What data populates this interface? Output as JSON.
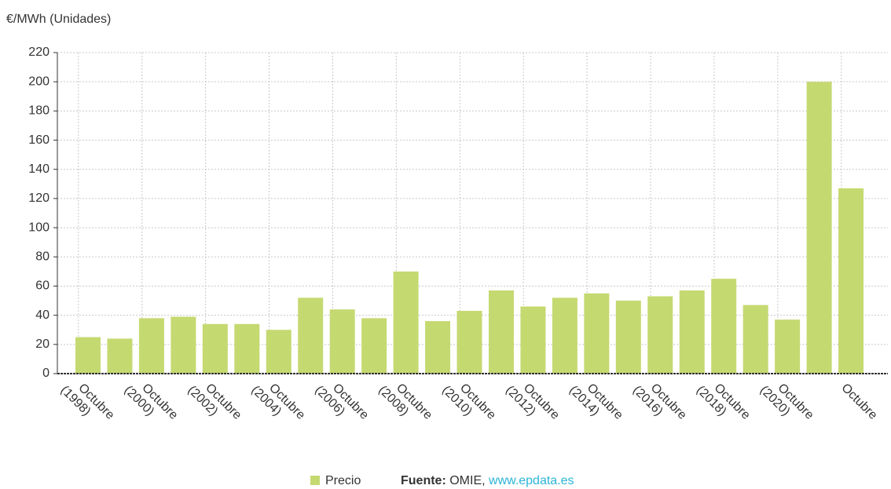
{
  "chart_data": {
    "type": "bar",
    "y_axis_label": "€/MWh (Unidades)",
    "categories": [
      "Octubre (1998)",
      null,
      "Octubre (2000)",
      null,
      "Octubre (2002)",
      null,
      "Octubre (2004)",
      null,
      "Octubre (2006)",
      null,
      "Octubre (2008)",
      null,
      "Octubre (2010)",
      null,
      "Octubre (2012)",
      null,
      "Octubre (2014)",
      null,
      "Octubre (2016)",
      null,
      "Octubre (2018)",
      null,
      "Octubre (2020)",
      null,
      "Octubre"
    ],
    "series": [
      {
        "name": "Precio",
        "color": "#c5d971",
        "values": [
          25,
          24,
          38,
          39,
          34,
          34,
          30,
          52,
          44,
          38,
          70,
          36,
          43,
          57,
          46,
          52,
          55,
          50,
          53,
          57,
          65,
          47,
          37,
          200,
          127
        ]
      }
    ],
    "ylim": [
      0,
      220
    ],
    "yticks": [
      0,
      20,
      40,
      60,
      80,
      100,
      120,
      140,
      160,
      180,
      200,
      220
    ],
    "grid": true,
    "source": {
      "label": "Fuente:",
      "text": "OMIE,",
      "link": "www.epdata.es"
    }
  }
}
